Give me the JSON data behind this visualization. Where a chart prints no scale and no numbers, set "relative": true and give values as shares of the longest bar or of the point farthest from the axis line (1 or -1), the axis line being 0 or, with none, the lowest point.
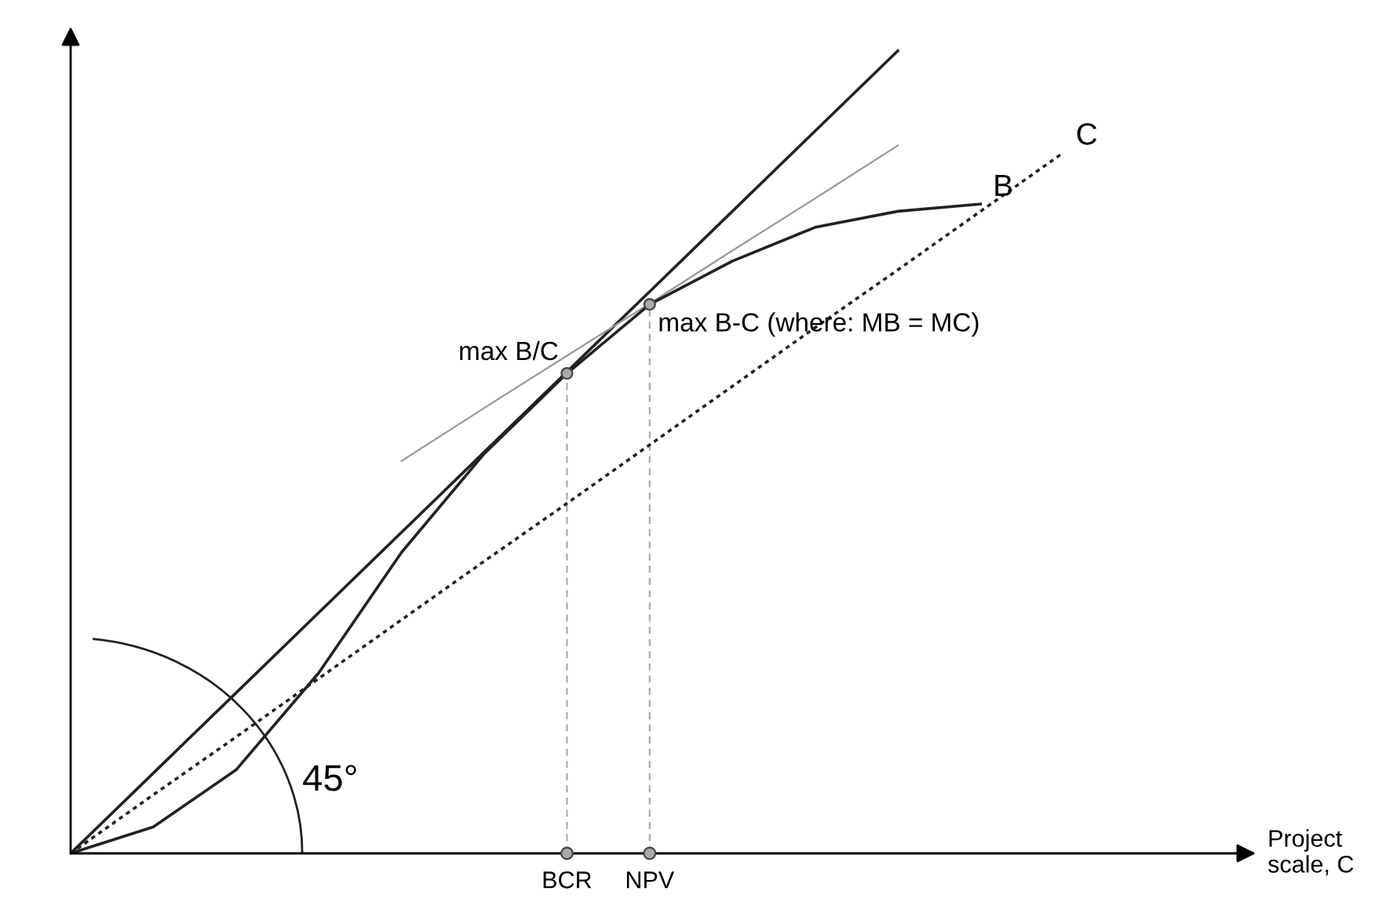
{
  "chart_data": {
    "type": "line",
    "relative": true,
    "xlabel": "Project\nscale, C",
    "categories": [
      null,
      null,
      null,
      null,
      null,
      null,
      "BCR",
      "NPV",
      null,
      null,
      null,
      null,
      null,
      null,
      null
    ],
    "series": [
      {
        "color": "#222222",
        "line_style": "solid",
        "values": [
          0,
          0.1,
          0.2,
          0.3,
          0.4,
          0.5,
          0.6,
          0.7,
          0.8,
          0.9,
          1.0,
          null,
          null,
          null,
          null
        ]
      },
      {
        "color": "#999999",
        "line_style": "solid",
        "values": [
          null,
          null,
          null,
          null,
          0.489,
          0.555,
          0.62,
          0.685,
          0.751,
          0.816,
          0.882,
          null,
          null,
          null,
          null
        ]
      },
      {
        "name": "C",
        "color": "#222222",
        "line_style": "dotted",
        "values": [
          0,
          0.073,
          0.145,
          0.218,
          0.291,
          0.364,
          0.436,
          0.509,
          0.582,
          0.655,
          0.727,
          0.8,
          0.873,
          null,
          null
        ]
      },
      {
        "name": "B",
        "color": "#222222",
        "line_style": "solid",
        "values": [
          0,
          0.033,
          0.104,
          0.225,
          0.375,
          0.498,
          0.598,
          0.684,
          0.738,
          0.78,
          0.8,
          0.809,
          null,
          null,
          null
        ]
      },
      {
        "type": "scatter",
        "color": "#aaaaaa",
        "marker": "circle",
        "values": [
          null,
          null,
          null,
          null,
          null,
          null,
          0,
          0,
          null,
          null,
          null,
          null,
          null,
          null,
          null
        ]
      }
    ],
    "ref_lines": [
      {
        "axis": "x",
        "value": "BCR",
        "color": "#aaaaaa",
        "line_style": "dashed"
      },
      {
        "axis": "x",
        "value": "NPV",
        "color": "#aaaaaa",
        "line_style": "dashed"
      }
    ],
    "annotations": [
      {
        "text": "max B/C",
        "x": "BCR",
        "y": 0.598
      },
      {
        "text": "max B-C (where: MB = MC)",
        "x": "NPV",
        "y": 0.684
      },
      "45°"
    ],
    "grid": false,
    "legend": false
  }
}
